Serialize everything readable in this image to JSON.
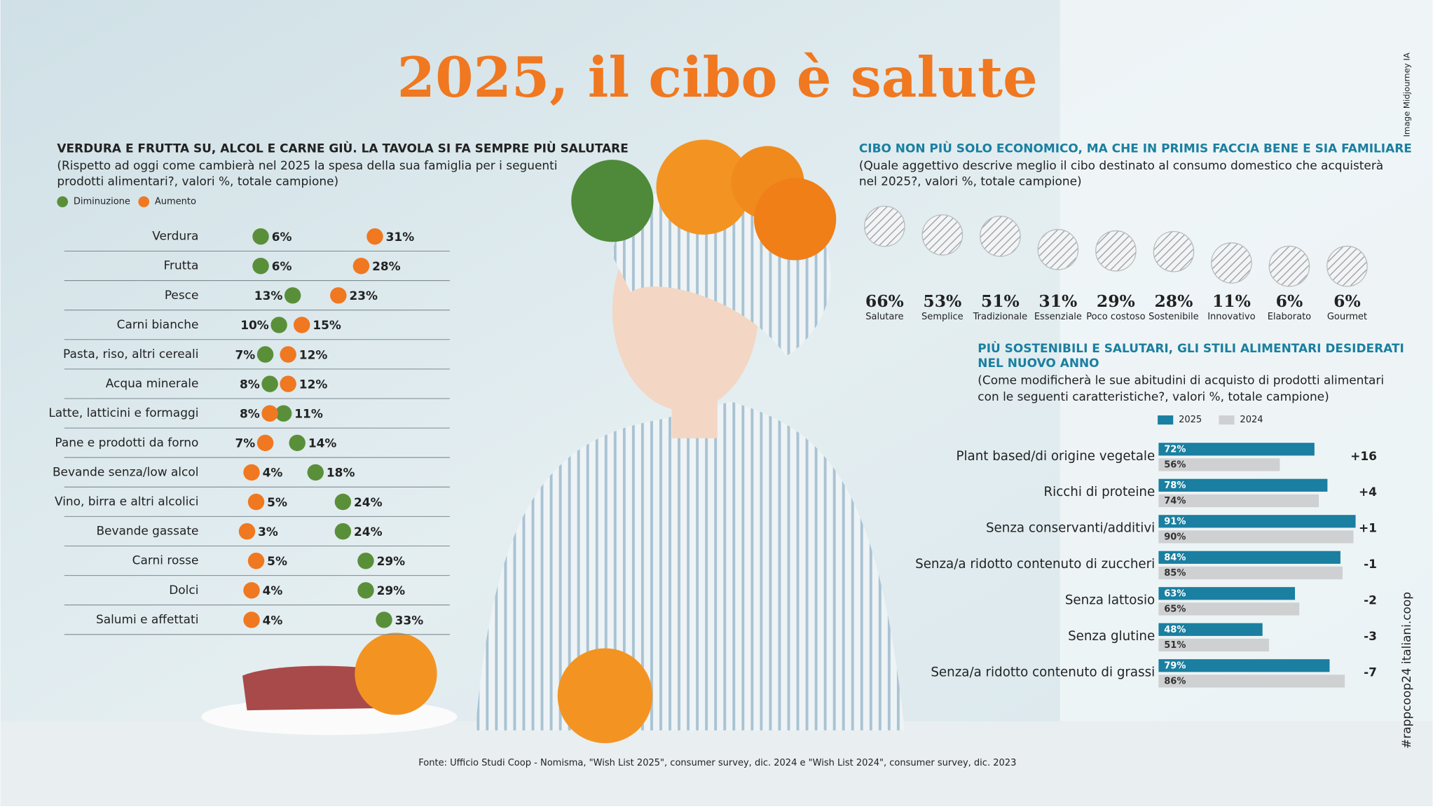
{
  "title": "2025, il cibo è salute",
  "source": "Fonte: Ufficio Studi Coop - Nomisma, \"Wish List 2025\", consumer survey, dic. 2024 e \"Wish List 2024\", consumer survey, dic. 2023",
  "image_credit": "Image Midjourney IA",
  "hashtag": "#rappcoop24 italiani.coop",
  "chart_data": [
    {
      "type": "dot",
      "title": "VERDURA E FRUTTA SU, ALCOL E CARNE GIÙ. LA TAVOLA SI FA SEMPRE PIÙ SALUTARE",
      "subtitle": [
        "(Rispetto ad oggi come cambierà nel 2025 la spesa della sua famiglia per i seguenti",
        "prodotti alimentari?, valori %, totale campione)"
      ],
      "categories": [
        "Verdura",
        "Frutta",
        "Pesce",
        "Carni bianche",
        "Pasta, riso, altri cereali",
        "Acqua minerale",
        "Latte, latticini e formaggi",
        "Pane e prodotti da forno",
        "Bevande senza/low alcol",
        "Vino, birra e altri alcolici",
        "Bevande gassate",
        "Carni rosse",
        "Dolci",
        "Salumi e affettati"
      ],
      "series": [
        {
          "name": "Diminuzione",
          "color": "#5a8f3a",
          "values": [
            6,
            6,
            13,
            10,
            7,
            8,
            11,
            14,
            18,
            24,
            24,
            29,
            29,
            33
          ],
          "value_labels": [
            "6%",
            "6%",
            "13%",
            "10%",
            "7%",
            "8%",
            "11%",
            "14%",
            "18%",
            "24%",
            "24%",
            "29%",
            "29%",
            "33%"
          ]
        },
        {
          "name": "Aumento",
          "color": "#f07820",
          "values": [
            31,
            28,
            23,
            15,
            12,
            12,
            8,
            7,
            4,
            5,
            3,
            5,
            4,
            4
          ],
          "value_labels": [
            "31%",
            "28%",
            "23%",
            "15%",
            "12%",
            "12%",
            "8%",
            "7%",
            "4%",
            "5%",
            "3%",
            "5%",
            "4%",
            "4%"
          ]
        }
      ]
    },
    {
      "type": "pictogram",
      "title": "CIBO NON PIÙ SOLO ECONOMICO, MA CHE IN PRIMIS FACCIA BENE E SIA FAMILIARE",
      "subtitle": [
        "(Quale aggettivo descrive meglio il cibo destinato al consumo domestico che acquisterà",
        "nel 2025?, valori %, totale campione)"
      ],
      "categories": [
        "Salutare",
        "Semplice",
        "Tradizionale",
        "Essenziale",
        "Poco costoso",
        "Sostenibile",
        "Innovativo",
        "Elaborato",
        "Gourmet"
      ],
      "values": [
        66,
        53,
        51,
        31,
        29,
        28,
        11,
        6,
        6
      ],
      "value_labels": [
        "66%",
        "53%",
        "51%",
        "31%",
        "29%",
        "28%",
        "11%",
        "6%",
        "6%"
      ]
    },
    {
      "type": "hbar",
      "title": [
        "PIÙ SOSTENIBILI E SALUTARI, GLI STILI ALIMENTARI DESIDERATI",
        "NEL NUOVO ANNO"
      ],
      "subtitle": [
        "(Come modificherà le sue abitudini di acquisto di prodotti alimentari",
        "con le seguenti caratteristiche?, valori %, totale campione)"
      ],
      "categories": [
        "Plant based/di origine vegetale",
        "Ricchi di proteine",
        "Senza conservanti/additivi",
        "Senza/a ridotto contenuto di zuccheri",
        "Senza lattosio",
        "Senza glutine",
        "Senza/a ridotto contenuto di grassi"
      ],
      "series": [
        {
          "name": "2025",
          "color": "#1a7fa0",
          "values": [
            72,
            78,
            91,
            84,
            63,
            48,
            79
          ],
          "value_labels": [
            "72%",
            "78%",
            "91%",
            "84%",
            "63%",
            "48%",
            "79%"
          ]
        },
        {
          "name": "2024",
          "color": "#cfd0d2",
          "values": [
            56,
            74,
            90,
            85,
            65,
            51,
            86
          ],
          "value_labels": [
            "56%",
            "74%",
            "90%",
            "85%",
            "65%",
            "51%",
            "86%"
          ]
        }
      ],
      "differences": [
        16,
        4,
        1,
        -1,
        -2,
        -3,
        -7
      ],
      "difference_labels": [
        "+16",
        "+4",
        "+1",
        "-1",
        "-2",
        "-3",
        "-7"
      ]
    }
  ]
}
